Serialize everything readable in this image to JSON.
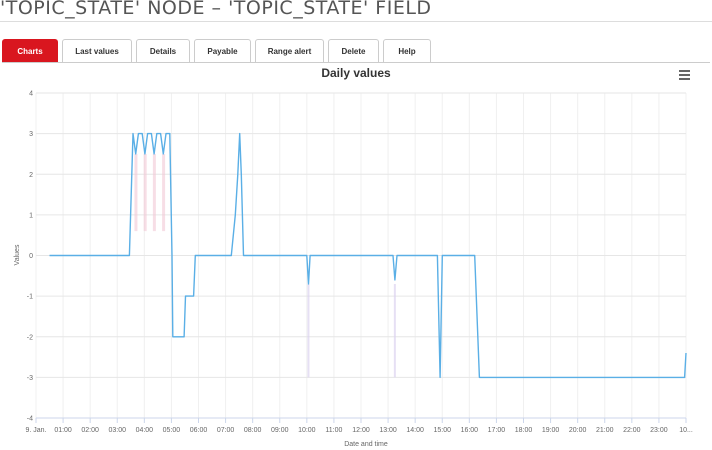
{
  "page": {
    "title": "'TOPIC_STATE' NODE – 'TOPIC_STATE' FIELD"
  },
  "tabs": [
    {
      "id": "charts",
      "label": "Charts",
      "active": true
    },
    {
      "id": "last-values",
      "label": "Last values",
      "active": false
    },
    {
      "id": "details",
      "label": "Details",
      "active": false
    },
    {
      "id": "payable",
      "label": "Payable",
      "active": false
    },
    {
      "id": "range-alert",
      "label": "Range alert",
      "active": false
    },
    {
      "id": "delete",
      "label": "Delete",
      "active": false
    },
    {
      "id": "help",
      "label": "Help",
      "active": false
    }
  ],
  "chart": {
    "menu_icon": "hamburger-menu-icon"
  },
  "chart_data": {
    "type": "line",
    "title": "Daily values",
    "xlabel": "Date and time",
    "ylabel": "Values",
    "ylim": [
      -4,
      4
    ],
    "xlim": [
      0,
      24
    ],
    "y_ticks": [
      "-4",
      "-3",
      "-2",
      "-1",
      "0",
      "1",
      "2",
      "3",
      "4"
    ],
    "x_ticks": [
      "9. Jan.",
      "01:00",
      "02:00",
      "03:00",
      "04:00",
      "05:00",
      "06:00",
      "07:00",
      "08:00",
      "09:00",
      "10:00",
      "11:00",
      "12:00",
      "13:00",
      "14:00",
      "15:00",
      "16:00",
      "17:00",
      "18:00",
      "19:00",
      "20:00",
      "21:00",
      "22:00",
      "23:00",
      "10..."
    ],
    "grid": true,
    "line_color": "#5aafe6",
    "series": [
      {
        "x": [
          0.5,
          3.45,
          3.58,
          3.68,
          3.78,
          3.92,
          4.02,
          4.12,
          4.26,
          4.36,
          4.46,
          4.6,
          4.7,
          4.8,
          4.94,
          5.02,
          5.05,
          5.47,
          5.52,
          5.82,
          5.88,
          7.21,
          7.36,
          7.45,
          7.52,
          7.58,
          7.66,
          7.75,
          10.0,
          10.06,
          10.12,
          13.18,
          13.25,
          13.33,
          14.82,
          14.92,
          15.0,
          15.08,
          16.2,
          16.37,
          16.48,
          23.95,
          24.0
        ],
        "y": [
          0,
          0,
          3,
          2.5,
          3,
          3,
          2.5,
          3,
          3,
          2.5,
          3,
          3,
          2.5,
          3,
          3,
          0,
          -2,
          -2,
          -1,
          -1,
          0,
          0,
          1,
          2,
          3,
          2,
          0,
          0,
          0,
          -0.7,
          0,
          0,
          -0.6,
          0,
          0,
          -3,
          0,
          0,
          0,
          -3,
          -3,
          -3,
          -2.4
        ]
      }
    ]
  }
}
